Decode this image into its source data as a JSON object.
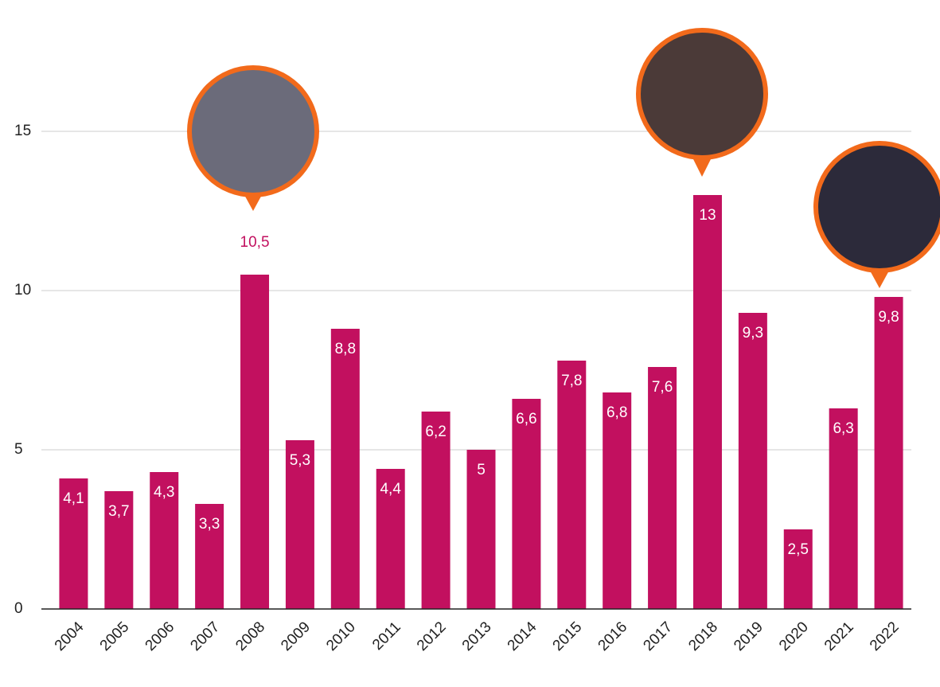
{
  "chart_data": {
    "type": "bar",
    "categories": [
      "2004",
      "2005",
      "2006",
      "2007",
      "2008",
      "2009",
      "2010",
      "2011",
      "2012",
      "2013",
      "2014",
      "2015",
      "2016",
      "2017",
      "2018",
      "2019",
      "2020",
      "2021",
      "2022"
    ],
    "values": [
      4.1,
      3.7,
      4.3,
      3.3,
      10.5,
      5.3,
      8.8,
      4.4,
      6.2,
      5,
      6.6,
      7.8,
      6.8,
      7.6,
      13,
      9.3,
      2.5,
      6.3,
      9.8
    ],
    "value_labels": [
      "4,1",
      "3,7",
      "4,3",
      "3,3",
      "10,5",
      "5,3",
      "8,8",
      "4,4",
      "6,2",
      "5",
      "6,6",
      "7,8",
      "6,8",
      "7,6",
      "13",
      "9,3",
      "2,5",
      "6,3",
      "9,8"
    ],
    "color": "#c2105f",
    "ylim": [
      0,
      19
    ],
    "yticks": [
      0,
      5,
      10,
      15
    ],
    "grid": true
  }
}
